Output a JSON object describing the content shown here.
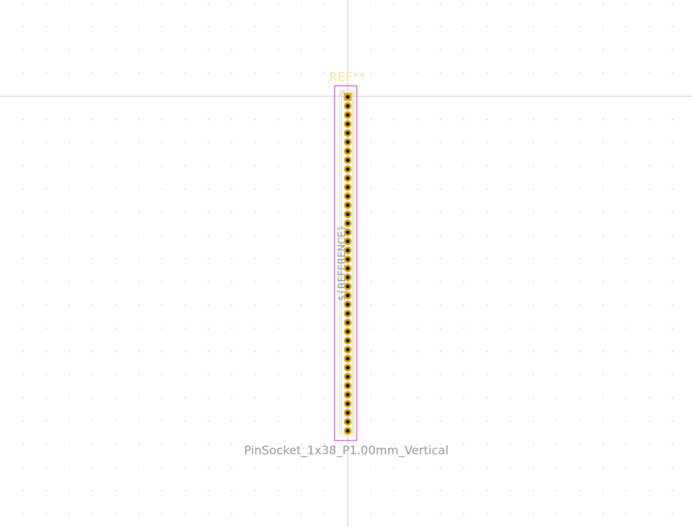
{
  "footprint": {
    "reference": "REF**",
    "value_label": "PinSocket_1x38_P1.00mm_Vertical",
    "fab_reference": "${REFERENCE}",
    "pin_count": 38
  },
  "colors": {
    "background": "#ffffff",
    "grid_dot": "#b8b8b8",
    "axis_line": "#c6c6d2",
    "pad_gold": "#e3a810",
    "drill_hole": "#1a1a1a",
    "courtyard": "#d21ed2",
    "silkscreen": "#f2e6a0",
    "fab_text": "#9a9a9a"
  }
}
